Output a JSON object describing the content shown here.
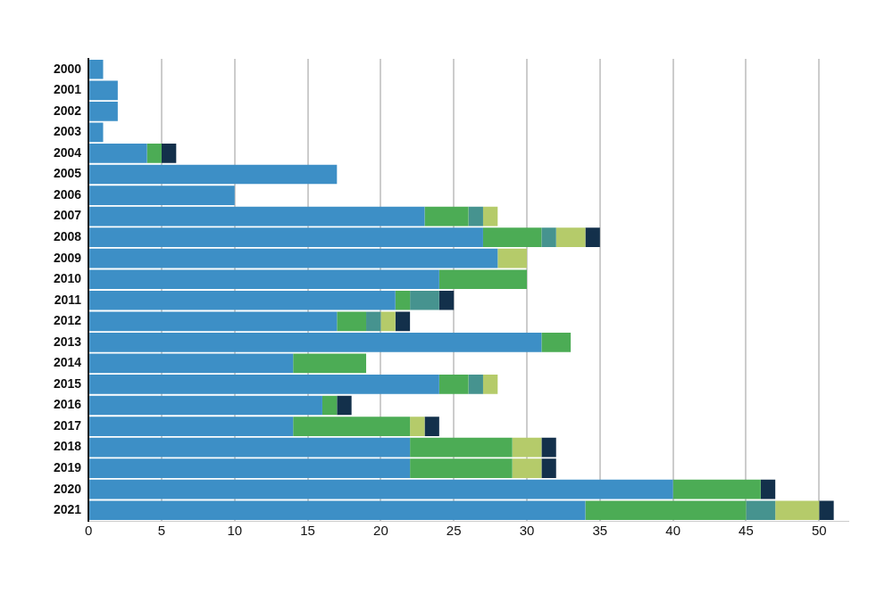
{
  "chart_data": {
    "type": "bar",
    "orientation": "horizontal",
    "stacked": true,
    "grid": true,
    "categories": [
      "2000",
      "2001",
      "2002",
      "2003",
      "2004",
      "2005",
      "2006",
      "2007",
      "2008",
      "2009",
      "2010",
      "2011",
      "2012",
      "2013",
      "2014",
      "2015",
      "2016",
      "2017",
      "2018",
      "2019",
      "2020",
      "2021"
    ],
    "series": [
      {
        "color": "#3d8fc6",
        "values": [
          1,
          2,
          2,
          1,
          4,
          17,
          10,
          23,
          27,
          28,
          24,
          21,
          17,
          31,
          14,
          24,
          16,
          14,
          22,
          22,
          40,
          34
        ]
      },
      {
        "color": "#4cac55",
        "values": [
          0,
          0,
          0,
          0,
          1,
          0,
          0,
          3,
          4,
          0,
          6,
          1,
          2,
          2,
          5,
          2,
          1,
          8,
          7,
          7,
          6,
          11
        ]
      },
      {
        "color": "#46938f",
        "values": [
          0,
          0,
          0,
          0,
          0,
          0,
          0,
          1,
          1,
          0,
          0,
          2,
          1,
          0,
          0,
          1,
          0,
          0,
          0,
          0,
          0,
          2
        ]
      },
      {
        "color": "#b5cb6a",
        "values": [
          0,
          0,
          0,
          0,
          0,
          0,
          0,
          1,
          2,
          2,
          0,
          0,
          1,
          0,
          0,
          1,
          0,
          1,
          2,
          2,
          0,
          3
        ]
      },
      {
        "color": "#13304b",
        "values": [
          0,
          0,
          0,
          0,
          1,
          0,
          0,
          0,
          1,
          0,
          0,
          1,
          1,
          0,
          0,
          0,
          1,
          1,
          1,
          1,
          1,
          1
        ]
      }
    ],
    "xlim": [
      0,
      52
    ],
    "xticks": [
      0,
      5,
      10,
      15,
      20,
      25,
      30,
      35,
      40,
      45,
      50
    ]
  }
}
